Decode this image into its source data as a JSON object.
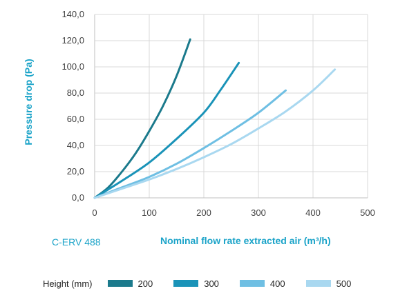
{
  "chart_data": {
    "type": "line",
    "title": "",
    "model_label": "C-ERV 488",
    "xlabel": "Nominal flow rate extracted air (m³/h)",
    "ylabel": "Pressure drop (Pa)",
    "xlim": [
      0,
      500
    ],
    "ylim": [
      0,
      140
    ],
    "x_ticks": [
      "0",
      "100",
      "200",
      "300",
      "400",
      "500"
    ],
    "y_ticks": [
      "0,0",
      "20,0",
      "40,0",
      "60,0",
      "80,0",
      "100,0",
      "120,0",
      "140,0"
    ],
    "grid": true,
    "legend_title": "Height (mm)",
    "legend_position": "bottom",
    "series": [
      {
        "name": "200",
        "color": "#1b7a8c",
        "points": [
          [
            0,
            0
          ],
          [
            25,
            8
          ],
          [
            50,
            20
          ],
          [
            75,
            34
          ],
          [
            100,
            51
          ],
          [
            125,
            70
          ],
          [
            150,
            93
          ],
          [
            175,
            121
          ]
        ]
      },
      {
        "name": "300",
        "color": "#1a93b8",
        "points": [
          [
            0,
            0
          ],
          [
            50,
            13
          ],
          [
            100,
            27
          ],
          [
            150,
            45
          ],
          [
            200,
            65
          ],
          [
            230,
            82
          ],
          [
            264,
            103
          ]
        ]
      },
      {
        "name": "400",
        "color": "#6fbfe3",
        "points": [
          [
            0,
            0
          ],
          [
            50,
            8
          ],
          [
            100,
            16
          ],
          [
            150,
            26
          ],
          [
            200,
            38
          ],
          [
            250,
            51
          ],
          [
            300,
            65
          ],
          [
            350,
            82
          ]
        ]
      },
      {
        "name": "500",
        "color": "#a9d8f0",
        "points": [
          [
            0,
            0
          ],
          [
            50,
            7
          ],
          [
            100,
            14
          ],
          [
            150,
            22
          ],
          [
            200,
            31
          ],
          [
            250,
            41
          ],
          [
            300,
            53
          ],
          [
            350,
            66
          ],
          [
            400,
            82
          ],
          [
            440,
            98
          ]
        ]
      }
    ]
  }
}
